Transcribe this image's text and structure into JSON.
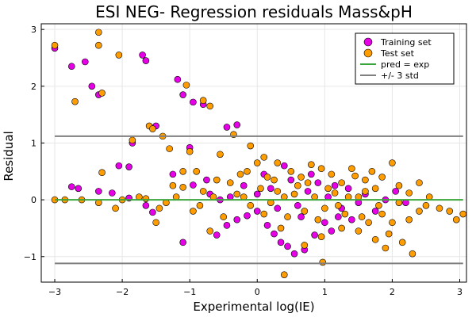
{
  "chart_data": {
    "type": "scatter",
    "title": "ESI NEG- Regression residuals Mass&pH",
    "xlabel": "Experimental log(IE)",
    "ylabel": "Residual",
    "xlim": [
      -3.2,
      3.1
    ],
    "ylim": [
      -1.45,
      3.1
    ],
    "xticks": [
      -3,
      -2,
      -1,
      0,
      1,
      2,
      3
    ],
    "yticks": [
      -1,
      0,
      1,
      2,
      3
    ],
    "grid": true,
    "legend_position": "top-right",
    "series": [
      {
        "name": "Training set",
        "kind": "scatter",
        "color": "#e600e6",
        "points": [
          [
            -3.0,
            2.67
          ],
          [
            -2.75,
            2.35
          ],
          [
            -2.55,
            2.43
          ],
          [
            -2.45,
            2.0
          ],
          [
            -2.35,
            1.85
          ],
          [
            -1.7,
            2.55
          ],
          [
            -1.65,
            2.45
          ],
          [
            -1.18,
            2.12
          ],
          [
            -1.1,
            1.85
          ],
          [
            -0.95,
            1.72
          ],
          [
            -0.8,
            1.68
          ],
          [
            -0.45,
            1.28
          ],
          [
            -0.3,
            1.32
          ],
          [
            -1.85,
            1.0
          ],
          [
            -1.5,
            1.3
          ],
          [
            -2.05,
            0.6
          ],
          [
            -1.9,
            0.58
          ],
          [
            -1.0,
            0.92
          ],
          [
            -1.25,
            0.45
          ],
          [
            -0.75,
            0.35
          ],
          [
            -0.95,
            0.26
          ],
          [
            -2.75,
            0.23
          ],
          [
            -2.65,
            0.2
          ],
          [
            -2.35,
            0.15
          ],
          [
            -2.15,
            0.12
          ],
          [
            -1.9,
            0.03
          ],
          [
            -1.65,
            -0.1
          ],
          [
            -1.55,
            -0.22
          ],
          [
            -1.1,
            -0.75
          ],
          [
            -0.6,
            -0.62
          ],
          [
            -0.45,
            -0.45
          ],
          [
            -0.3,
            -0.35
          ],
          [
            -0.15,
            -0.28
          ],
          [
            0.0,
            -0.2
          ],
          [
            0.15,
            -0.45
          ],
          [
            0.25,
            -0.6
          ],
          [
            0.35,
            -0.75
          ],
          [
            0.45,
            -0.82
          ],
          [
            0.55,
            -0.95
          ],
          [
            0.7,
            -0.88
          ],
          [
            0.85,
            -0.62
          ],
          [
            1.0,
            -0.4
          ],
          [
            1.1,
            -0.55
          ],
          [
            1.2,
            -0.3
          ],
          [
            0.0,
            0.1
          ],
          [
            -0.2,
            0.25
          ],
          [
            0.1,
            0.45
          ],
          [
            0.2,
            0.2
          ],
          [
            0.3,
            -0.15
          ],
          [
            0.5,
            0.35
          ],
          [
            0.6,
            -0.1
          ],
          [
            0.75,
            0.15
          ],
          [
            0.9,
            0.3
          ],
          [
            1.05,
            0.05
          ],
          [
            1.25,
            -0.15
          ],
          [
            1.35,
            0.2
          ],
          [
            1.5,
            -0.05
          ],
          [
            1.6,
            0.1
          ],
          [
            1.75,
            -0.2
          ],
          [
            1.9,
            0.0
          ],
          [
            2.05,
            0.15
          ],
          [
            2.2,
            -0.05
          ],
          [
            -0.55,
            0.0
          ],
          [
            -0.7,
            0.1
          ],
          [
            -0.4,
            0.05
          ],
          [
            0.4,
            0.6
          ],
          [
            0.65,
            -0.3
          ],
          [
            0.8,
            0.45
          ],
          [
            1.15,
            0.25
          ],
          [
            1.4,
            -0.35
          ]
        ]
      },
      {
        "name": "Test set",
        "kind": "scatter",
        "color": "#ff9c00",
        "points": [
          [
            -3.0,
            2.72
          ],
          [
            -2.35,
            2.95
          ],
          [
            -2.35,
            2.72
          ],
          [
            -2.05,
            2.55
          ],
          [
            -2.3,
            1.88
          ],
          [
            -2.7,
            1.73
          ],
          [
            -1.05,
            2.02
          ],
          [
            -0.8,
            1.75
          ],
          [
            -0.7,
            1.65
          ],
          [
            -0.35,
            1.15
          ],
          [
            -1.6,
            1.3
          ],
          [
            -1.55,
            1.25
          ],
          [
            -1.4,
            1.12
          ],
          [
            -1.85,
            1.05
          ],
          [
            -1.3,
            0.9
          ],
          [
            -1.0,
            0.85
          ],
          [
            -2.3,
            0.48
          ],
          [
            -1.1,
            0.22
          ],
          [
            -0.9,
            0.5
          ],
          [
            -0.6,
            0.35
          ],
          [
            -0.1,
            0.95
          ],
          [
            0.1,
            0.75
          ],
          [
            0.3,
            0.65
          ],
          [
            0.5,
            0.5
          ],
          [
            0.65,
            0.4
          ],
          [
            0.8,
            0.62
          ],
          [
            0.95,
            0.55
          ],
          [
            1.1,
            0.45
          ],
          [
            1.25,
            0.3
          ],
          [
            1.45,
            0.42
          ],
          [
            1.6,
            0.35
          ],
          [
            1.75,
            0.2
          ],
          [
            1.85,
            0.4
          ],
          [
            2.0,
            0.65
          ],
          [
            2.1,
            0.25
          ],
          [
            2.25,
            0.12
          ],
          [
            2.4,
            0.3
          ],
          [
            2.55,
            0.05
          ],
          [
            2.7,
            -0.15
          ],
          [
            2.85,
            -0.2
          ],
          [
            3.05,
            -0.25
          ],
          [
            2.95,
            -0.35
          ],
          [
            -3.0,
            0.0
          ],
          [
            -2.85,
            0.0
          ],
          [
            -2.6,
            0.0
          ],
          [
            -2.35,
            -0.05
          ],
          [
            -2.1,
            -0.15
          ],
          [
            -1.75,
            0.05
          ],
          [
            -1.45,
            -0.15
          ],
          [
            -1.2,
            0.05
          ],
          [
            -0.95,
            -0.2
          ],
          [
            -0.7,
            -0.55
          ],
          [
            -0.5,
            -0.3
          ],
          [
            -0.3,
            0.1
          ],
          [
            -0.1,
            -0.1
          ],
          [
            0.05,
            0.2
          ],
          [
            0.2,
            -0.05
          ],
          [
            0.35,
            -0.5
          ],
          [
            0.45,
            -0.3
          ],
          [
            0.55,
            0.1
          ],
          [
            0.7,
            -0.2
          ],
          [
            0.85,
            0.05
          ],
          [
            1.0,
            -0.15
          ],
          [
            1.15,
            0.12
          ],
          [
            1.3,
            -0.25
          ],
          [
            1.5,
            0.05
          ],
          [
            1.65,
            -0.4
          ],
          [
            1.8,
            -0.1
          ],
          [
            1.95,
            -0.6
          ],
          [
            2.1,
            -0.05
          ],
          [
            2.25,
            -0.35
          ],
          [
            2.4,
            -0.2
          ],
          [
            2.15,
            -0.75
          ],
          [
            1.9,
            -0.85
          ],
          [
            1.75,
            -0.7
          ],
          [
            1.5,
            -0.55
          ],
          [
            1.25,
            -0.5
          ],
          [
            0.95,
            -0.65
          ],
          [
            0.7,
            -0.8
          ],
          [
            0.4,
            -1.32
          ],
          [
            0.97,
            -1.1
          ],
          [
            2.3,
            -0.95
          ],
          [
            1.55,
            -0.3
          ],
          [
            0.6,
            0.25
          ],
          [
            0.25,
            0.35
          ],
          [
            -0.15,
            0.5
          ],
          [
            -0.4,
            0.3
          ],
          [
            -0.8,
            0.15
          ],
          [
            -1.25,
            0.25
          ],
          [
            -1.5,
            -0.4
          ],
          [
            -0.2,
            0.05
          ],
          [
            0.1,
            -0.25
          ],
          [
            0.3,
            0.15
          ],
          [
            0.75,
            0.3
          ],
          [
            1.05,
            0.2
          ],
          [
            1.35,
            0.05
          ],
          [
            1.6,
            0.15
          ],
          [
            1.85,
            -0.25
          ],
          [
            2.0,
            -0.4
          ],
          [
            2.5,
            -0.1
          ],
          [
            -1.1,
            0.5
          ],
          [
            -0.55,
            0.8
          ],
          [
            -0.25,
            0.45
          ],
          [
            0.0,
            0.65
          ],
          [
            0.15,
            0.4
          ],
          [
            0.4,
            0.05
          ],
          [
            0.9,
            -0.35
          ],
          [
            1.2,
            -0.1
          ],
          [
            1.4,
            0.55
          ],
          [
            1.7,
            0.5
          ],
          [
            -2.0,
            0.0
          ],
          [
            -1.65,
            0.02
          ],
          [
            -1.35,
            -0.05
          ],
          [
            -0.85,
            -0.1
          ],
          [
            -0.65,
            0.05
          ]
        ]
      },
      {
        "name": "pred = exp",
        "kind": "line",
        "color": "#3aa53a",
        "points": [
          [
            -3.0,
            0.0
          ],
          [
            3.05,
            0.0
          ]
        ]
      },
      {
        "name": "+/- 3 std",
        "kind": "line",
        "color": "#808080",
        "segments": [
          [
            [
              -3.0,
              1.12
            ],
            [
              3.05,
              1.12
            ]
          ],
          [
            [
              -3.0,
              -1.12
            ],
            [
              3.05,
              -1.12
            ]
          ]
        ]
      }
    ]
  }
}
